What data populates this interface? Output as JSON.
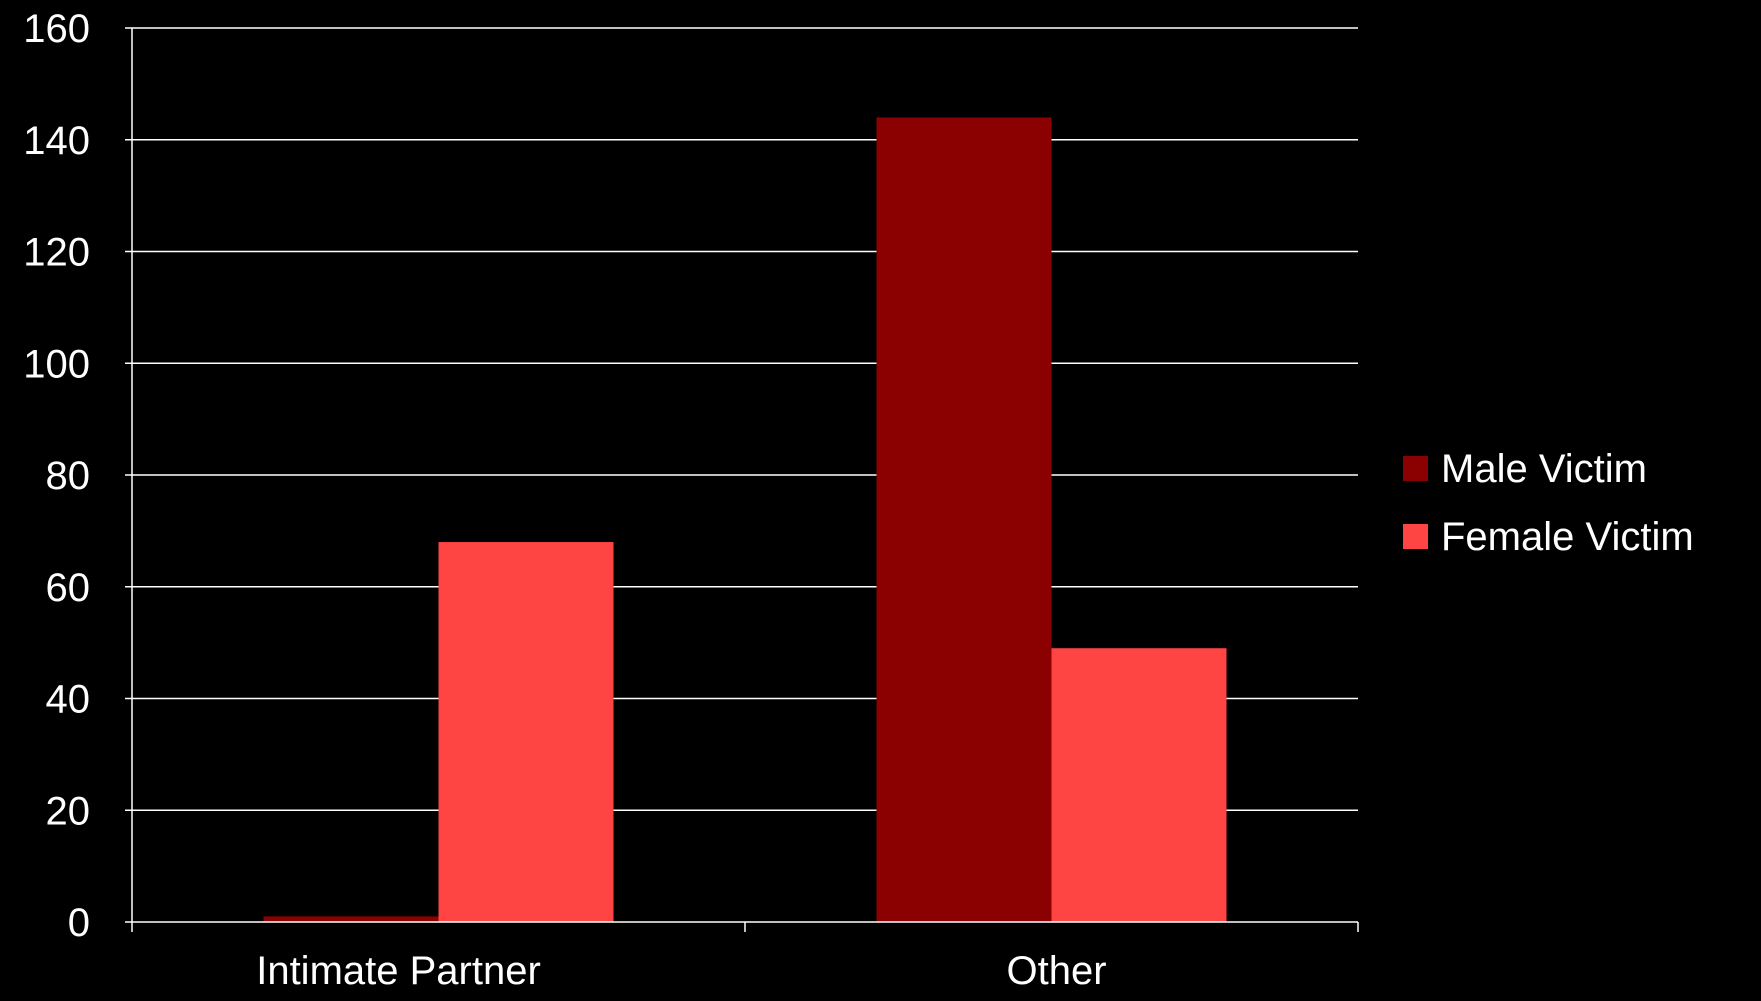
{
  "chart_data": {
    "type": "bar",
    "categories": [
      "Intimate Partner",
      "Other"
    ],
    "series": [
      {
        "name": "Male Victim",
        "values": [
          1,
          144
        ],
        "color": "#8b0000"
      },
      {
        "name": "Female Victim",
        "values": [
          68,
          49
        ],
        "color": "#ff4444"
      }
    ],
    "title": "",
    "xlabel": "",
    "ylabel": "",
    "ylim": [
      0,
      160
    ],
    "yticks": [
      "0",
      "20",
      "40",
      "60",
      "80",
      "100",
      "120",
      "140",
      "160"
    ],
    "grid": true,
    "legend_position": "right"
  },
  "colors": {
    "background": "#000000",
    "axis": "#ffffff",
    "grid": "#ffffff",
    "text": "#ffffff"
  }
}
